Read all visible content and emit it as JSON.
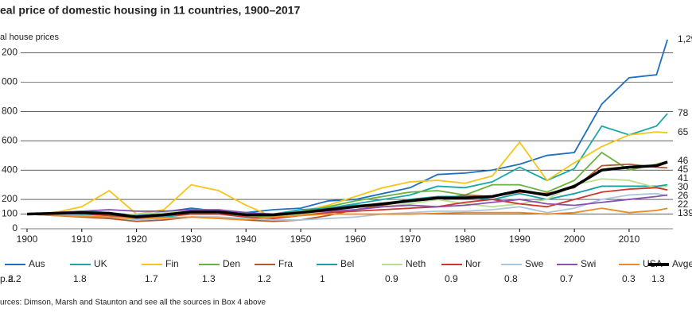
{
  "chart_data": {
    "type": "line",
    "title": "eal price of domestic housing in 11 countries, 1900–2017",
    "y_label": "al house prices",
    "source": "urces: Dimson, Marsh and Staunton and see all the sources in Box 4 above",
    "pa_label": "p.a.",
    "x": [
      1900,
      1905,
      1910,
      1915,
      1920,
      1925,
      1930,
      1935,
      1940,
      1945,
      1950,
      1955,
      1960,
      1965,
      1970,
      1975,
      1980,
      1985,
      1990,
      1995,
      2000,
      2005,
      2010,
      2015,
      2017
    ],
    "xlim": [
      1900,
      2018
    ],
    "xticks": [
      1900,
      1910,
      1920,
      1930,
      1940,
      1950,
      1960,
      1970,
      1980,
      1990,
      2000,
      2010
    ],
    "ylim": [
      0,
      1300
    ],
    "yticks": [
      0,
      100,
      200,
      400,
      600,
      800,
      {
        "value": 1000,
        "label": "000"
      },
      {
        "value": 1200,
        "label": "200"
      }
    ],
    "grid": true,
    "series": [
      {
        "name": "Aus",
        "color": "#1f6fbf",
        "pa": 2.2,
        "end_label": "1,29",
        "values": [
          100,
          105,
          115,
          110,
          90,
          115,
          140,
          120,
          110,
          130,
          140,
          190,
          200,
          240,
          280,
          370,
          380,
          400,
          440,
          500,
          520,
          850,
          1030,
          1050,
          1290
        ]
      },
      {
        "name": "UK",
        "color": "#1aa7a7",
        "pa": 1.8,
        "end_label": "78",
        "values": [
          100,
          105,
          100,
          90,
          70,
          80,
          100,
          110,
          95,
          90,
          120,
          140,
          170,
          200,
          230,
          290,
          280,
          320,
          420,
          330,
          410,
          700,
          640,
          700,
          785
        ]
      },
      {
        "name": "Fin",
        "color": "#f5c518",
        "pa": 1.7,
        "end_label": "65",
        "values": [
          100,
          110,
          150,
          260,
          100,
          130,
          300,
          260,
          160,
          80,
          120,
          160,
          220,
          280,
          320,
          330,
          310,
          360,
          590,
          330,
          450,
          560,
          640,
          660,
          655
        ]
      },
      {
        "name": "Den",
        "color": "#6ab23e",
        "pa": 1.3,
        "end_label": "46",
        "values": [
          100,
          110,
          115,
          100,
          80,
          90,
          120,
          110,
          90,
          80,
          110,
          150,
          190,
          220,
          250,
          260,
          230,
          300,
          300,
          250,
          330,
          520,
          400,
          440,
          460
        ]
      },
      {
        "name": "Fra",
        "color": "#b5562a",
        "pa": 1.2,
        "end_label": "41",
        "values": [
          100,
          90,
          80,
          70,
          50,
          60,
          80,
          80,
          60,
          50,
          60,
          90,
          130,
          160,
          190,
          200,
          230,
          220,
          250,
          240,
          280,
          430,
          440,
          420,
          415
        ]
      },
      {
        "name": "Bel",
        "color": "#13a0a8",
        "pa": 1.0,
        "end_label": "30",
        "values": [
          100,
          110,
          120,
          110,
          80,
          100,
          120,
          110,
          90,
          100,
          130,
          140,
          160,
          170,
          200,
          220,
          220,
          200,
          240,
          200,
          240,
          290,
          290,
          290,
          300
        ]
      },
      {
        "name": "Neth",
        "color": "#b8e08f",
        "pa": 0.9,
        "values": [
          100,
          110,
          110,
          90,
          100,
          110,
          130,
          120,
          100,
          90,
          100,
          110,
          130,
          150,
          170,
          200,
          170,
          150,
          170,
          200,
          300,
          340,
          330,
          280,
          290
        ]
      },
      {
        "name": "Nor",
        "color": "#d0342c",
        "pa": 0.9,
        "end_label": "26",
        "values": [
          100,
          110,
          105,
          90,
          80,
          90,
          100,
          100,
          80,
          70,
          90,
          110,
          120,
          130,
          140,
          150,
          180,
          200,
          170,
          150,
          200,
          250,
          270,
          280,
          265
        ]
      },
      {
        "name": "Swe",
        "color": "#a9c6dd",
        "pa": 0.8,
        "end_label": "22",
        "values": [
          100,
          95,
          90,
          80,
          60,
          70,
          80,
          80,
          70,
          60,
          60,
          70,
          80,
          100,
          110,
          120,
          120,
          130,
          150,
          110,
          140,
          200,
          230,
          240,
          225
        ]
      },
      {
        "name": "Swi",
        "color": "#8a4fb0",
        "pa": 0.7,
        "values": [
          100,
          110,
          120,
          130,
          120,
          120,
          130,
          130,
          110,
          100,
          110,
          120,
          130,
          150,
          160,
          150,
          160,
          180,
          200,
          170,
          160,
          180,
          200,
          220,
          230
        ]
      },
      {
        "name": "USA",
        "color": "#f08a24",
        "pa": 0.3,
        "end_label": "139",
        "values": [
          100,
          90,
          85,
          80,
          70,
          75,
          80,
          70,
          60,
          80,
          90,
          100,
          100,
          100,
          100,
          105,
          110,
          110,
          110,
          100,
          110,
          140,
          110,
          125,
          139
        ]
      },
      {
        "name": "Avge",
        "color": "#000000",
        "pa": 1.3,
        "end_label": "45",
        "values": [
          100,
          105,
          110,
          105,
          80,
          95,
          115,
          115,
          95,
          95,
          110,
          130,
          150,
          170,
          190,
          210,
          210,
          220,
          260,
          230,
          290,
          400,
          420,
          430,
          455
        ]
      }
    ]
  }
}
